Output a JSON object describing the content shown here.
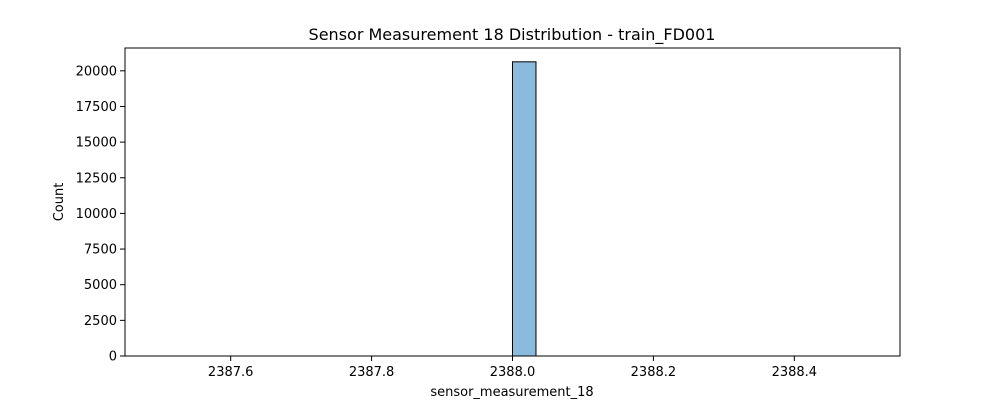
{
  "chart_data": {
    "type": "bar",
    "title": "Sensor Measurement 18 Distribution - train_FD001",
    "xlabel": "sensor_measurement_18",
    "ylabel": "Count",
    "xlim": [
      2387.45,
      2388.55
    ],
    "ylim": [
      0,
      21600
    ],
    "x_ticks": [
      2387.6,
      2387.8,
      2388.0,
      2388.2,
      2388.4
    ],
    "x_tick_labels": [
      "2387.6",
      "2387.8",
      "2388.0",
      "2388.2",
      "2388.4"
    ],
    "y_ticks": [
      0,
      2500,
      5000,
      7500,
      10000,
      12500,
      15000,
      17500,
      20000
    ],
    "y_tick_labels": [
      "0",
      "2500",
      "5000",
      "7500",
      "10000",
      "12500",
      "15000",
      "17500",
      "20000"
    ],
    "bin_range": [
      2387.5,
      2388.5
    ],
    "bin_count": 30,
    "bins": [
      {
        "x_start": 2388.0,
        "x_end": 2388.0333,
        "count": 20631
      }
    ],
    "bar_color": "#8bbbdc",
    "edge_color": "#000000",
    "grid": false,
    "legend": "none"
  }
}
